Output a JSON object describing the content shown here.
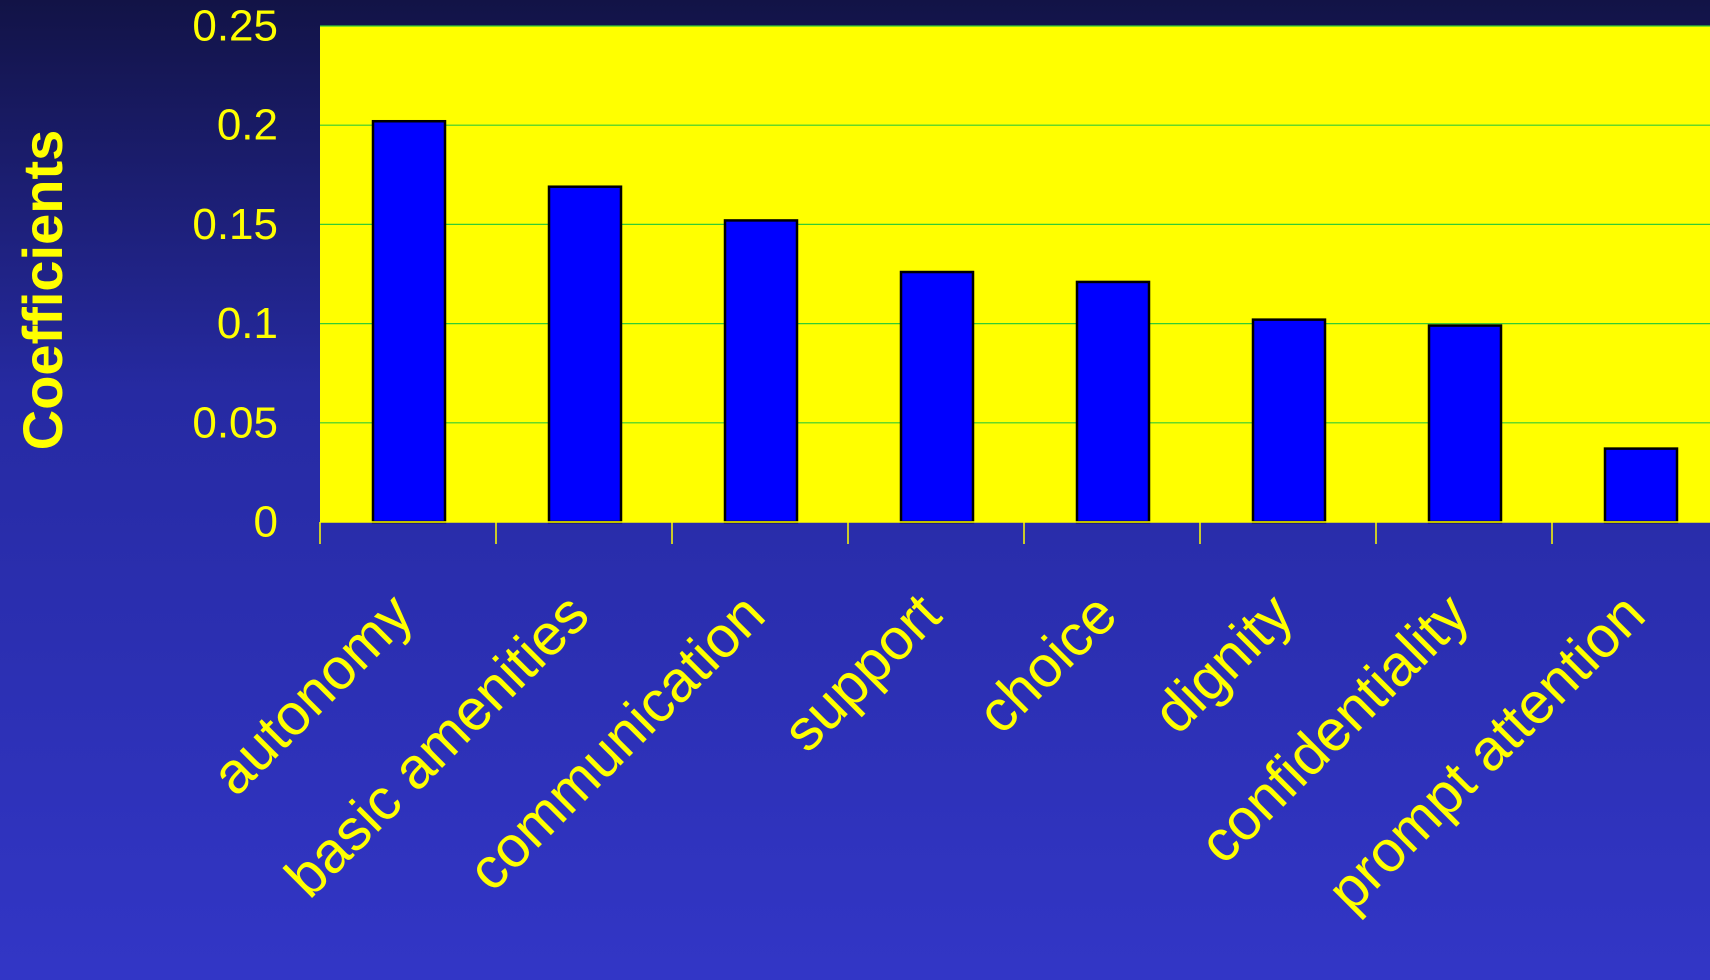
{
  "colors": {
    "background_top": "#121346",
    "background_bottom": "#3236c6",
    "plot_area": "#ffff00",
    "bar_fill": "#0000ff",
    "bar_stroke": "#000000",
    "gridline": "#33cc33",
    "text": "#ffff00"
  },
  "chart_data": {
    "type": "bar",
    "title": "",
    "xlabel": "",
    "ylabel": "Coefficients",
    "categories": [
      "autonomy",
      "basic amenities",
      "communication",
      "support",
      "choice",
      "dignity",
      "confidentiality",
      "prompt attention"
    ],
    "values": [
      0.202,
      0.169,
      0.152,
      0.126,
      0.121,
      0.102,
      0.099,
      0.037
    ],
    "ylim": [
      0,
      0.25
    ],
    "yticks": [
      0,
      0.05,
      0.1,
      0.15,
      0.2,
      0.25
    ],
    "ytick_labels": [
      "0",
      "0.05",
      "0.1",
      "0.15",
      "0.2",
      "0.25"
    ],
    "grid": true,
    "legend": "none"
  }
}
